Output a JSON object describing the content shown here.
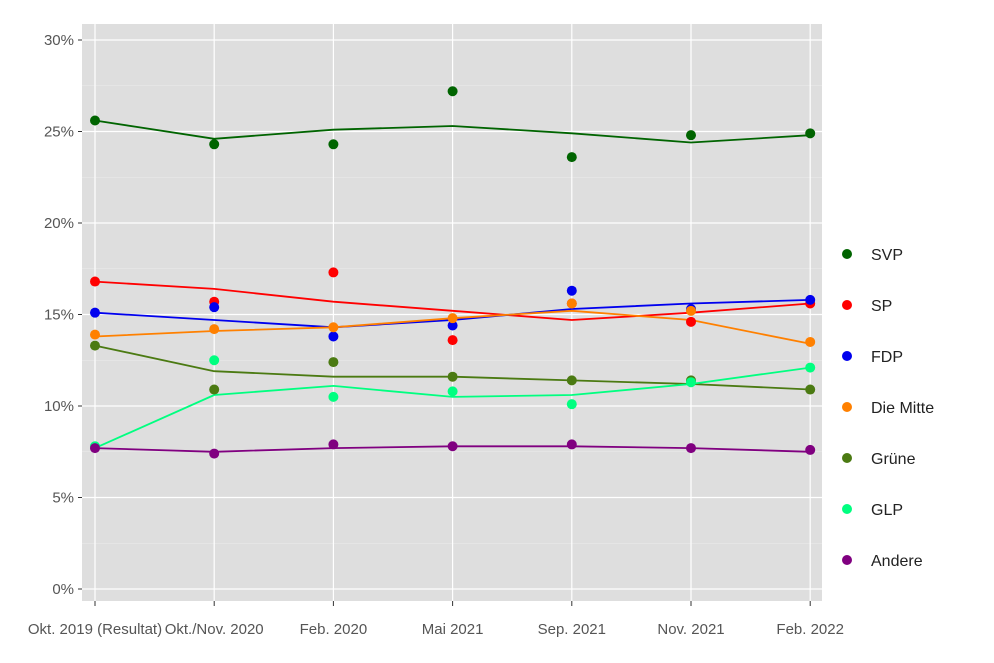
{
  "chart_data": {
    "type": "line",
    "title": "",
    "xlabel": "",
    "ylabel": "",
    "categories": [
      "Okt. 2019 (Resultat)",
      "Okt./Nov. 2020",
      "Feb. 2020",
      "Mai 2021",
      "Sep. 2021",
      "Nov. 2021",
      "Feb. 2022"
    ],
    "ylim": [
      0,
      30
    ],
    "yticks": [
      "0%",
      "5%",
      "10%",
      "15%",
      "20%",
      "25%",
      "30%"
    ],
    "yticks_values": [
      0,
      5,
      10,
      15,
      20,
      25,
      30
    ],
    "grid": true,
    "legend": "right",
    "series": [
      {
        "name": "SVP",
        "color": "#006400",
        "points": [
          25.6,
          24.3,
          24.3,
          27.2,
          23.6,
          24.8,
          24.9
        ],
        "trend": [
          25.6,
          24.6,
          25.1,
          25.3,
          24.9,
          24.4,
          24.8
        ]
      },
      {
        "name": "SP",
        "color": "#ff0000",
        "points": [
          16.8,
          15.7,
          17.3,
          13.6,
          15.6,
          14.6,
          15.6
        ],
        "trend": [
          16.8,
          16.4,
          15.7,
          15.2,
          14.7,
          15.1,
          15.6
        ]
      },
      {
        "name": "FDP",
        "color": "#0000ee",
        "points": [
          15.1,
          15.4,
          13.8,
          14.4,
          16.3,
          15.3,
          15.8
        ],
        "trend": [
          15.1,
          14.7,
          14.3,
          14.7,
          15.3,
          15.6,
          15.8
        ]
      },
      {
        "name": "Die Mitte",
        "color": "#ff8000",
        "points": [
          13.9,
          14.2,
          14.3,
          14.8,
          15.6,
          15.2,
          13.5
        ],
        "trend": [
          13.8,
          14.1,
          14.3,
          14.8,
          15.2,
          14.7,
          13.4
        ]
      },
      {
        "name": "Grüne",
        "color": "#4b7a12",
        "points": [
          13.3,
          10.9,
          12.4,
          11.6,
          11.4,
          11.4,
          10.9
        ],
        "trend": [
          13.3,
          11.9,
          11.6,
          11.6,
          11.4,
          11.2,
          10.9
        ]
      },
      {
        "name": "GLP",
        "color": "#00ff80",
        "points": [
          7.8,
          12.5,
          10.5,
          10.8,
          10.1,
          11.3,
          12.1
        ],
        "trend": [
          7.7,
          10.6,
          11.1,
          10.5,
          10.6,
          11.2,
          12.1
        ]
      },
      {
        "name": "Andere",
        "color": "#800080",
        "points": [
          7.7,
          7.4,
          7.9,
          7.8,
          7.9,
          7.7,
          7.6
        ],
        "trend": [
          7.7,
          7.5,
          7.7,
          7.8,
          7.8,
          7.7,
          7.5
        ]
      }
    ]
  }
}
